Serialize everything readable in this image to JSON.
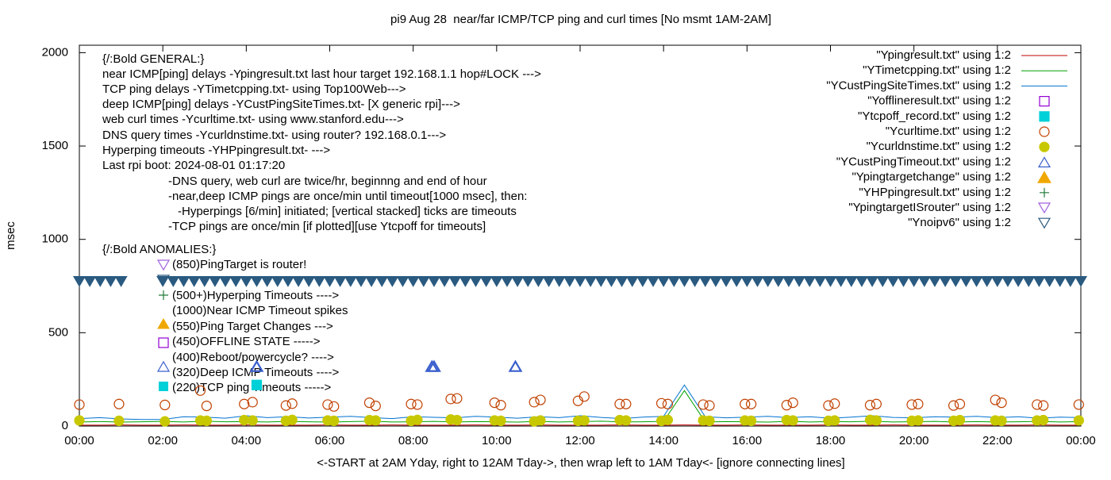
{
  "chart_data": {
    "type": "line",
    "title": "pi9 Aug 28  near/far ICMP/TCP ping and curl times [No msmt 1AM-2AM]",
    "xlabel": "<-START at 2AM Yday, right to 12AM Tday->, then wrap left to 1AM Tday<- [ignore connecting lines]",
    "ylabel": "msec",
    "xlim": [
      0,
      24
    ],
    "ylim": [
      0,
      2040
    ],
    "xticks": [
      {
        "value": 0,
        "label": "00:00"
      },
      {
        "value": 2,
        "label": "02:00"
      },
      {
        "value": 4,
        "label": "04:00"
      },
      {
        "value": 6,
        "label": "06:00"
      },
      {
        "value": 8,
        "label": "08:00"
      },
      {
        "value": 10,
        "label": "10:00"
      },
      {
        "value": 12,
        "label": "12:00"
      },
      {
        "value": 14,
        "label": "14:00"
      },
      {
        "value": 16,
        "label": "16:00"
      },
      {
        "value": 18,
        "label": "18:00"
      },
      {
        "value": 20,
        "label": "20:00"
      },
      {
        "value": 22,
        "label": "22:00"
      },
      {
        "value": 24,
        "label": "00:00"
      }
    ],
    "yticks": [
      0,
      500,
      1000,
      1500,
      2000
    ],
    "legend": "top-right",
    "annotations": [
      "{/:Bold GENERAL:}",
      "near ICMP[ping] delays -Ypingresult.txt last hour target 192.168.1.1 hop#LOCK --->",
      "TCP ping delays -YTimetcpping.txt- using Top100Web--->",
      "deep ICMP[ping] delays -YCustPingSiteTimes.txt- [X generic rpi]--->",
      "web curl times -Ycurltime.txt- using www.stanford.edu--->",
      "DNS query times -Ycurldnstime.txt- using router? 192.168.0.1--->",
      "Hyperping timeouts -YHPpingresult.txt- --->",
      "Last rpi boot: 2024-08-01 01:17:20",
      "-DNS query, web curl are twice/hr, beginnng and end of hour",
      "-near,deep ICMP pings are once/min until timeout[1000 msec], then:",
      "-Hyperpings [6/min] initiated; [vertical stacked] ticks are timeouts",
      "-TCP pings are once/min [if plotted][use Ytcpoff for timeouts]",
      "{/:Bold ANOMALIES:}",
      "(850)PingTarget is router!",
      "(500+)Hyperping Timeouts ---->",
      "(1000)Near ICMP Timeout spikes",
      "(550)Ping Target Changes --->",
      "(450)OFFLINE STATE ----->",
      "(400)Reboot/powercycle? ---->",
      "(320)Deep ICMP Timeouts ---->",
      "(220)TCP ping Timeouts ----->"
    ],
    "series": [
      {
        "name": "\"Ypingresult.txt\" using 1:2",
        "color": "#c00000",
        "marker": "line",
        "x": [
          0,
          0.5,
          1,
          1.5,
          2,
          2.5,
          3,
          3.5,
          4,
          4.5,
          5,
          5.5,
          6,
          6.5,
          7,
          7.5,
          8,
          8.5,
          9,
          9.5,
          10,
          10.5,
          11,
          11.5,
          12,
          12.5,
          13,
          13.5,
          14,
          14.5,
          15,
          15.5,
          16,
          16.5,
          17,
          17.5,
          18,
          18.5,
          19,
          19.5,
          20,
          20.5,
          21,
          21.5,
          22,
          22.5,
          23,
          23.5,
          24
        ],
        "values": [
          5,
          5,
          6,
          5,
          5,
          6,
          5,
          5,
          6,
          5,
          5,
          5,
          6,
          5,
          5,
          6,
          5,
          5,
          5,
          6,
          5,
          5,
          6,
          5,
          5,
          5,
          6,
          5,
          5,
          6,
          5,
          5,
          6,
          5,
          5,
          5,
          6,
          5,
          5,
          6,
          5,
          5,
          5,
          6,
          5,
          5,
          6,
          5,
          5
        ]
      },
      {
        "name": "\"YTimetcpping.txt\" using 1:2",
        "color": "#00a000",
        "marker": "line",
        "x": [
          0,
          0.5,
          1,
          1.5,
          2,
          2.5,
          3,
          3.5,
          4,
          4.5,
          5,
          5.5,
          6,
          6.5,
          7,
          7.5,
          8,
          8.5,
          9,
          9.5,
          10,
          10.5,
          11,
          11.5,
          12,
          12.5,
          13,
          13.5,
          14,
          14.5,
          15,
          15.5,
          16,
          16.5,
          17,
          17.5,
          18,
          18.5,
          19,
          19.5,
          20,
          20.5,
          21,
          21.5,
          22,
          22.5,
          23,
          23.5,
          24
        ],
        "values": [
          22,
          24,
          21,
          23,
          25,
          22,
          26,
          23,
          24,
          22,
          25,
          23,
          21,
          24,
          26,
          22,
          23,
          25,
          22,
          24,
          23,
          21,
          25,
          22,
          24,
          26,
          22,
          23,
          25,
          190,
          22,
          24,
          23,
          21,
          25,
          22,
          24,
          23,
          26,
          22,
          23,
          25,
          21,
          24,
          22,
          23,
          25,
          22,
          24
        ]
      },
      {
        "name": "\"YCustPingSiteTimes.txt\" using 1:2",
        "color": "#0072d0",
        "marker": "line",
        "x": [
          0,
          0.5,
          1,
          1.5,
          2,
          2.5,
          3,
          3.5,
          4,
          4.5,
          5,
          5.5,
          6,
          6.5,
          7,
          7.5,
          8,
          8.5,
          9,
          9.5,
          10,
          10.5,
          11,
          11.5,
          12,
          12.5,
          13,
          13.5,
          14,
          14.5,
          15,
          15.5,
          16,
          16.5,
          17,
          17.5,
          18,
          18.5,
          19,
          19.5,
          20,
          20.5,
          21,
          21.5,
          22,
          22.5,
          23,
          23.5,
          24
        ],
        "values": [
          40,
          45,
          38,
          35,
          35,
          50,
          48,
          42,
          55,
          45,
          50,
          43,
          48,
          52,
          45,
          40,
          50,
          47,
          44,
          52,
          48,
          42,
          50,
          45,
          55,
          46,
          40,
          48,
          52,
          220,
          50,
          44,
          48,
          52,
          45,
          50,
          42,
          48,
          55,
          46,
          44,
          50,
          48,
          52,
          45,
          50,
          42,
          48,
          45
        ]
      },
      {
        "name": "\"Yofflineresult.txt\" using 1:2",
        "color": "#9400d3",
        "marker": "open-square",
        "x": [],
        "values": []
      },
      {
        "name": "\"Ytcpoff_record.txt\" using 1:2",
        "color": "#00d0d8",
        "marker": "filled-square",
        "x": [
          4.25
        ],
        "values": [
          220
        ]
      },
      {
        "name": "\"Ycurltime.txt\" using 1:2",
        "color": "#c04000",
        "marker": "open-circle",
        "x": [
          0.0,
          0.95,
          2.05,
          2.9,
          3.05,
          3.95,
          4.15,
          4.95,
          5.1,
          5.95,
          6.1,
          6.95,
          7.1,
          7.95,
          8.1,
          8.9,
          9.05,
          9.95,
          10.1,
          10.9,
          11.05,
          11.95,
          12.1,
          12.95,
          13.1,
          13.95,
          14.1,
          14.95,
          15.1,
          15.95,
          16.1,
          16.95,
          17.1,
          17.95,
          18.1,
          18.95,
          19.1,
          19.95,
          20.1,
          20.95,
          21.1,
          21.95,
          22.1,
          22.95,
          23.1,
          23.95
        ],
        "values": [
          115,
          118,
          113,
          190,
          108,
          118,
          128,
          110,
          120,
          115,
          105,
          125,
          108,
          118,
          115,
          145,
          148,
          125,
          112,
          128,
          140,
          135,
          158,
          118,
          118,
          122,
          118,
          115,
          110,
          118,
          118,
          112,
          125,
          110,
          120,
          112,
          118,
          115,
          118,
          110,
          118,
          140,
          125,
          115,
          110,
          115
        ]
      },
      {
        "name": "\"Ycurldnstime.txt\" using 1:2",
        "color": "#c8c800",
        "marker": "filled-circle",
        "x": [
          0.0,
          0.95,
          2.05,
          2.9,
          3.05,
          3.95,
          4.15,
          4.95,
          5.1,
          5.95,
          6.1,
          6.95,
          7.1,
          7.95,
          8.1,
          8.9,
          9.05,
          9.95,
          10.1,
          10.9,
          11.05,
          11.95,
          12.1,
          12.95,
          13.1,
          13.95,
          14.1,
          14.95,
          15.1,
          15.95,
          16.1,
          16.95,
          17.1,
          17.95,
          18.1,
          18.95,
          19.1,
          19.95,
          20.1,
          20.95,
          21.1,
          21.95,
          22.1,
          22.95,
          23.1,
          23.95
        ],
        "values": [
          30,
          28,
          25,
          30,
          28,
          32,
          30,
          28,
          33,
          30,
          28,
          32,
          30,
          28,
          33,
          35,
          32,
          30,
          28,
          25,
          30,
          28,
          30,
          32,
          30,
          28,
          33,
          30,
          28,
          30,
          28,
          32,
          30,
          28,
          30,
          33,
          30,
          28,
          30,
          28,
          32,
          30,
          28,
          30,
          32,
          30
        ]
      },
      {
        "name": "\"YCustPingTimeout.txt\" using 1:2",
        "color": "#3a5fcd",
        "marker": "open-triangle",
        "x": [
          4.25,
          8.45,
          8.5,
          10.45
        ],
        "values": [
          320,
          320,
          320,
          320
        ]
      },
      {
        "name": "\"Ypingtargetchange\" using 1:2",
        "color": "#f0a800",
        "marker": "filled-triangle",
        "x": [],
        "values": []
      },
      {
        "name": "\"YHPpingresult.txt\" using 1:2",
        "color": "#1f7a3a",
        "marker": "plus",
        "x": [],
        "values": []
      },
      {
        "name": "\"YpingtargetISrouter\" using 1:2",
        "color": "#a060e0",
        "marker": "open-triangle-down",
        "x": [],
        "values": []
      },
      {
        "name": "\"Ynoipv6\" using 1:2",
        "color": "#2a5a80",
        "marker": "open-triangle-down",
        "x": [
          0,
          0.25,
          0.5,
          0.75,
          1,
          2,
          2.25,
          2.5,
          2.75,
          3,
          3.25,
          3.5,
          3.75,
          4,
          4.25,
          4.5,
          4.75,
          5,
          5.25,
          5.5,
          5.75,
          6,
          6.25,
          6.5,
          6.75,
          7,
          7.25,
          7.5,
          7.75,
          8,
          8.25,
          8.5,
          8.75,
          9,
          9.25,
          9.5,
          9.75,
          10,
          10.25,
          10.5,
          10.75,
          11,
          11.25,
          11.5,
          11.75,
          12,
          12.25,
          12.5,
          12.75,
          13,
          13.25,
          13.5,
          13.75,
          14,
          14.25,
          14.5,
          14.75,
          15,
          15.25,
          15.5,
          15.75,
          16,
          16.25,
          16.5,
          16.75,
          17,
          17.25,
          17.5,
          17.75,
          18,
          18.25,
          18.5,
          18.75,
          19,
          19.25,
          19.5,
          19.75,
          20,
          20.25,
          20.5,
          20.75,
          21,
          21.25,
          21.5,
          21.75,
          22,
          22.25,
          22.5,
          22.75,
          23,
          23.25,
          23.5,
          23.75,
          24
        ],
        "values": [
          775,
          775,
          775,
          775,
          775,
          775,
          775,
          775,
          775,
          775,
          775,
          775,
          775,
          775,
          775,
          775,
          775,
          775,
          775,
          775,
          775,
          775,
          775,
          775,
          775,
          775,
          775,
          775,
          775,
          775,
          775,
          775,
          775,
          775,
          775,
          775,
          775,
          775,
          775,
          775,
          775,
          775,
          775,
          775,
          775,
          775,
          775,
          775,
          775,
          775,
          775,
          775,
          775,
          775,
          775,
          775,
          775,
          775,
          775,
          775,
          775,
          775,
          775,
          775,
          775,
          775,
          775,
          775,
          775,
          775,
          775,
          775,
          775,
          775,
          775,
          775,
          775,
          775,
          775,
          775,
          775,
          775,
          775,
          775,
          775,
          775,
          775,
          775,
          775,
          775,
          775,
          775,
          775,
          775
        ]
      }
    ]
  }
}
